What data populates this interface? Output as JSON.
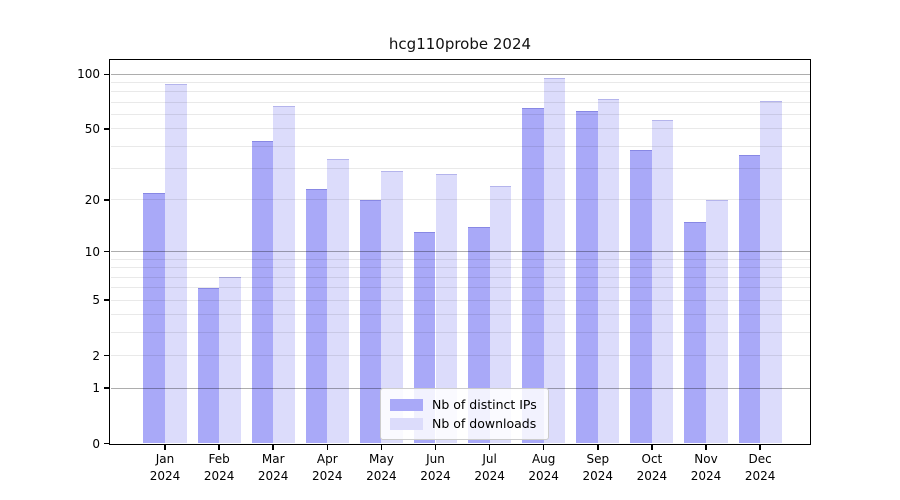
{
  "chart_data": {
    "type": "bar",
    "title": "hcg110probe 2024",
    "categories": [
      "Jan",
      "Feb",
      "Mar",
      "Apr",
      "May",
      "Jun",
      "Jul",
      "Aug",
      "Sep",
      "Oct",
      "Nov",
      "Dec"
    ],
    "category_year": "2024",
    "series": [
      {
        "name": "Nb of distinct IPs",
        "color": "#a9a9f8",
        "values": [
          22,
          6,
          43,
          23,
          20,
          13,
          14,
          65,
          63,
          38,
          15,
          36
        ]
      },
      {
        "name": "Nb of downloads",
        "color": "#dcdcfb",
        "values": [
          88,
          7,
          67,
          34,
          29,
          28,
          24,
          95,
          73,
          56,
          20,
          71
        ]
      }
    ],
    "xlabel": "",
    "ylabel": "",
    "yscale": "log1p",
    "ylim": [
      0,
      120
    ],
    "y_ticks": [
      100,
      50,
      20,
      10,
      5,
      2,
      1,
      0
    ],
    "y_major_gridlines": [
      100,
      10,
      1
    ],
    "y_minor_gridlines": [
      2,
      3,
      4,
      5,
      6,
      7,
      8,
      9,
      20,
      30,
      40,
      50,
      60,
      70,
      80,
      90
    ],
    "grid": "on",
    "legend_position": "lower center"
  }
}
